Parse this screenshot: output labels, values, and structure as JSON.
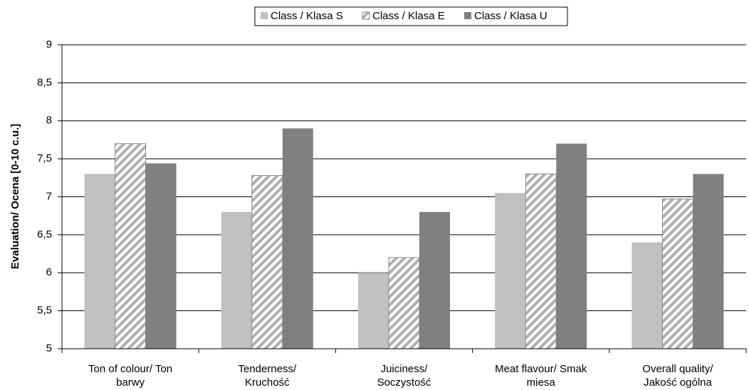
{
  "chart_data": {
    "type": "bar",
    "y_label": "Evaluation/ Ocena [0-10 c.u.]",
    "categories": [
      "Ton of colour/ Ton\nbarwy",
      "Tenderness/\nKruchość",
      "Juiciness/\nSoczystość",
      "Meat flavour/  Smak\nmiesa",
      "Overall quality/\nJakość ogólna"
    ],
    "series": [
      {
        "name": "Class / Klasa S",
        "color": "#c0c0c0",
        "values": [
          7.3,
          6.8,
          6.0,
          7.05,
          6.4
        ]
      },
      {
        "name": "Class / Klasa E",
        "color": "#b0b0b0",
        "pattern": "hatch",
        "values": [
          7.7,
          7.28,
          6.2,
          7.3,
          6.97
        ]
      },
      {
        "name": "Class / Klasa U",
        "color": "#808080",
        "values": [
          7.44,
          7.9,
          6.8,
          7.7,
          7.3
        ]
      }
    ],
    "ylim": [
      5,
      9
    ],
    "yticks": [
      5,
      {
        "value": 5.5,
        "label": "5,5"
      },
      6,
      {
        "value": 6.5,
        "label": "6,5"
      },
      7,
      {
        "value": 7.5,
        "label": "7,5"
      },
      8,
      {
        "value": 8.5,
        "label": "8,5"
      },
      9
    ],
    "grid": true,
    "legend": "top"
  }
}
